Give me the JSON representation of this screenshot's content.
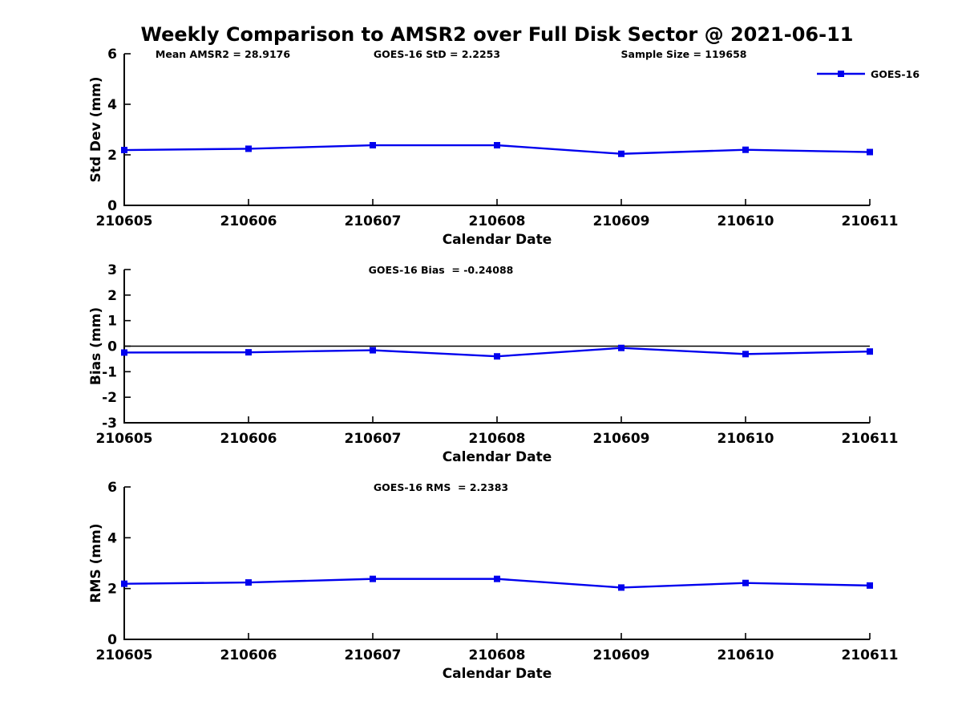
{
  "figure": {
    "title": "Weekly Comparison to AMSR2 over Full Disk Sector @ 2021-06-11",
    "background": "#ffffff",
    "accent_blue": "#0000EE",
    "text_color": "#000000"
  },
  "legend": {
    "label": "GOES-16",
    "position": "top-right",
    "marker": "filled-square",
    "line_color": "#0000EE"
  },
  "chart_data": [
    {
      "type": "line",
      "id": "stddev",
      "annotations": [
        "Mean AMSR2 = 28.9176",
        "GOES-16 StD = 2.2253",
        "Sample Size = 119658"
      ],
      "categories": [
        "210605",
        "210606",
        "210607",
        "210608",
        "210609",
        "210610",
        "210611"
      ],
      "series": [
        {
          "name": "GOES-16",
          "color": "#0000EE",
          "marker": "square",
          "values": [
            2.19,
            2.24,
            2.38,
            2.38,
            2.04,
            2.2,
            2.11
          ]
        }
      ],
      "xlabel": "Calendar Date",
      "ylabel": "Std Dev (mm)",
      "ylim": [
        0,
        6
      ],
      "yticks": [
        0,
        2,
        4,
        6
      ],
      "grid": false,
      "box": false,
      "legend": true,
      "zero_line": false
    },
    {
      "type": "line",
      "id": "bias",
      "annotations": [
        "GOES-16 Bias  = -0.24088"
      ],
      "categories": [
        "210605",
        "210606",
        "210607",
        "210608",
        "210609",
        "210610",
        "210611"
      ],
      "series": [
        {
          "name": "GOES-16",
          "color": "#0000EE",
          "marker": "square",
          "values": [
            -0.25,
            -0.24,
            -0.16,
            -0.4,
            -0.07,
            -0.31,
            -0.21
          ]
        }
      ],
      "xlabel": "Calendar Date",
      "ylabel": "Bias (mm)",
      "ylim": [
        -3,
        3
      ],
      "yticks": [
        -3,
        -2,
        -1,
        0,
        1,
        2,
        3
      ],
      "grid": false,
      "box": false,
      "legend": false,
      "zero_line": true
    },
    {
      "type": "line",
      "id": "rms",
      "annotations": [
        "GOES-16 RMS  = 2.2383"
      ],
      "categories": [
        "210605",
        "210606",
        "210607",
        "210608",
        "210609",
        "210610",
        "210611"
      ],
      "series": [
        {
          "name": "GOES-16",
          "color": "#0000EE",
          "marker": "square",
          "values": [
            2.19,
            2.24,
            2.38,
            2.38,
            2.04,
            2.22,
            2.12
          ]
        }
      ],
      "xlabel": "Calendar Date",
      "ylabel": "RMS (mm)",
      "ylim": [
        0,
        6
      ],
      "yticks": [
        0,
        2,
        4,
        6
      ],
      "grid": false,
      "box": false,
      "legend": false,
      "zero_line": false
    }
  ]
}
